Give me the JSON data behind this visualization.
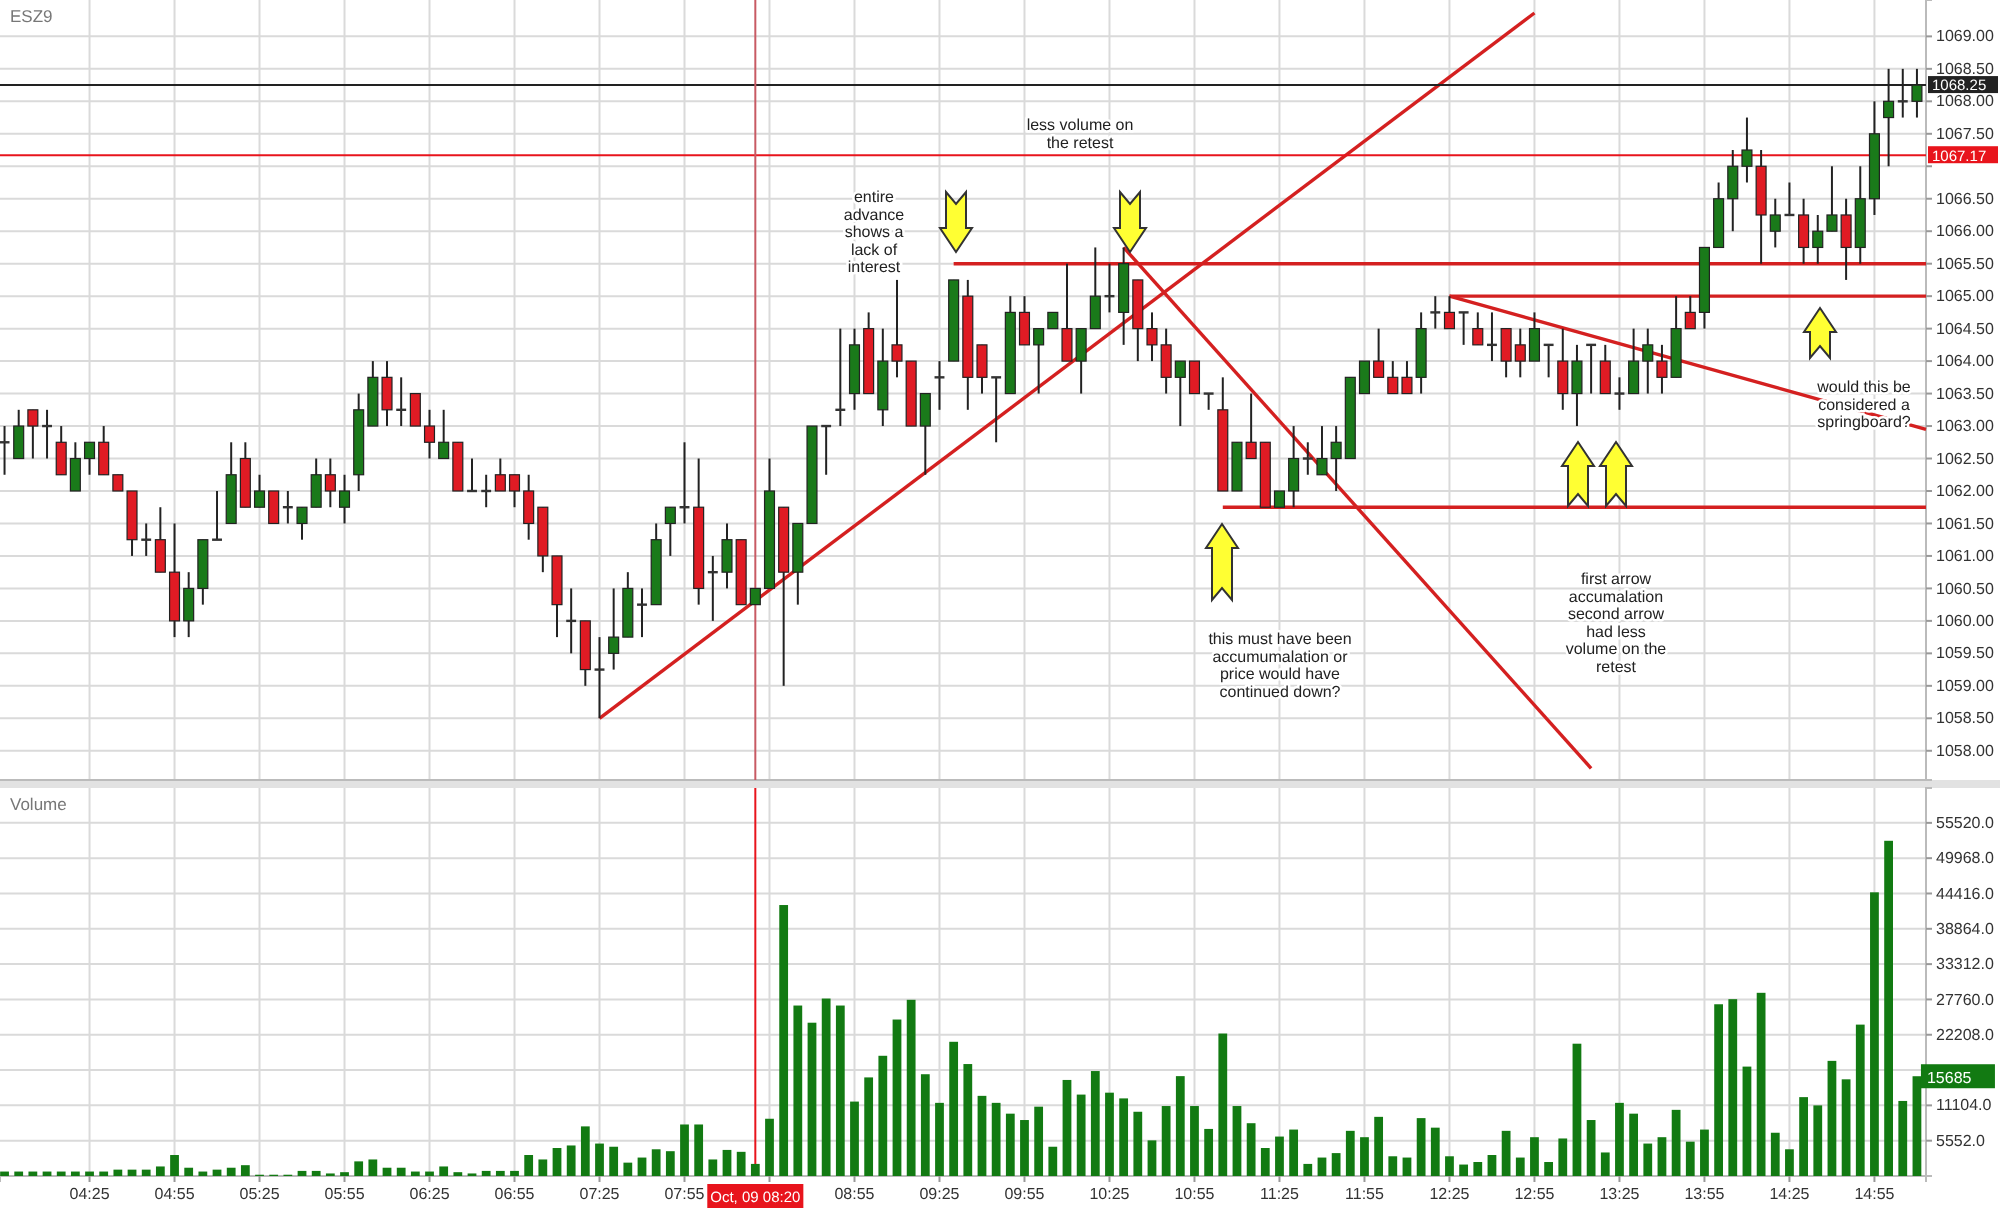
{
  "chart_data": [
    {
      "type": "candlestick",
      "title": "ESZ9",
      "grid": true,
      "tick_labels": "y",
      "xlim": [
        3.89,
        15.22
      ],
      "ylim": [
        1057.55,
        1069.56
      ],
      "xticks": [
        {
          "value": 4.4167,
          "label": null
        },
        {
          "value": 4.9167,
          "label": null
        },
        {
          "value": 5.4167,
          "label": null
        },
        {
          "value": 5.9167,
          "label": null
        },
        {
          "value": 6.4167,
          "label": null
        },
        {
          "value": 6.9167,
          "label": null
        },
        {
          "value": 7.4167,
          "label": null
        },
        {
          "value": 7.9167,
          "label": null
        },
        {
          "value": 8.4167,
          "label": null
        },
        {
          "value": 8.9167,
          "label": null
        },
        {
          "value": 9.4167,
          "label": null
        },
        {
          "value": 9.9167,
          "label": null
        },
        {
          "value": 10.4167,
          "label": null
        },
        {
          "value": 10.9167,
          "label": null
        },
        {
          "value": 11.4167,
          "label": null
        },
        {
          "value": 11.9167,
          "label": null
        },
        {
          "value": 12.4167,
          "label": null
        },
        {
          "value": 12.9167,
          "label": null
        },
        {
          "value": 13.4167,
          "label": null
        },
        {
          "value": 13.9167,
          "label": null
        },
        {
          "value": 14.4167,
          "label": null
        },
        {
          "value": 14.9167,
          "label": null
        }
      ],
      "yticks": [
        {
          "value": 1058,
          "label": "1058.00"
        },
        {
          "value": 1058.5,
          "label": "1058.50"
        },
        {
          "value": 1059,
          "label": "1059.00"
        },
        {
          "value": 1059.5,
          "label": "1059.50"
        },
        {
          "value": 1060,
          "label": "1060.00"
        },
        {
          "value": 1060.5,
          "label": "1060.50"
        },
        {
          "value": 1061,
          "label": "1061.00"
        },
        {
          "value": 1061.5,
          "label": "1061.50"
        },
        {
          "value": 1062,
          "label": "1062.00"
        },
        {
          "value": 1062.5,
          "label": "1062.50"
        },
        {
          "value": 1063,
          "label": "1063.00"
        },
        {
          "value": 1063.5,
          "label": "1063.50"
        },
        {
          "value": 1064,
          "label": "1064.00"
        },
        {
          "value": 1064.5,
          "label": "1064.50"
        },
        {
          "value": 1065,
          "label": "1065.00"
        },
        {
          "value": 1065.5,
          "label": "1065.50"
        },
        {
          "value": 1066,
          "label": "1066.00"
        },
        {
          "value": 1066.5,
          "label": "1066.50"
        },
        {
          "value": 1067,
          "label": null
        },
        {
          "value": 1067.5,
          "label": "1067.50"
        },
        {
          "value": 1068,
          "label": "1068.00"
        },
        {
          "value": 1068.5,
          "label": "1068.50"
        },
        {
          "value": 1069,
          "label": "1069.00"
        }
      ],
      "x": [
        3.9167,
        4,
        4.0833,
        4.1667,
        4.25,
        4.3333,
        4.4167,
        4.5,
        4.5833,
        4.6667,
        4.75,
        4.8333,
        4.9167,
        5,
        5.0833,
        5.1667,
        5.25,
        5.3333,
        5.4167,
        5.5,
        5.5833,
        5.6667,
        5.75,
        5.8333,
        5.9167,
        6,
        6.0833,
        6.1667,
        6.25,
        6.3333,
        6.4167,
        6.5,
        6.5833,
        6.6667,
        6.75,
        6.8333,
        6.9167,
        7,
        7.0833,
        7.1667,
        7.25,
        7.3333,
        7.4167,
        7.5,
        7.5833,
        7.6667,
        7.75,
        7.8333,
        7.9167,
        8,
        8.0833,
        8.1667,
        8.25,
        8.3333,
        8.4167,
        8.5,
        8.5833,
        8.6667,
        8.75,
        8.8333,
        8.9167,
        9,
        9.0833,
        9.1667,
        9.25,
        9.3333,
        9.4167,
        9.5,
        9.5833,
        9.6667,
        9.75,
        9.8333,
        9.9167,
        10,
        10.0833,
        10.1667,
        10.25,
        10.3333,
        10.4167,
        10.5,
        10.5833,
        10.6667,
        10.75,
        10.8333,
        10.9167,
        11,
        11.0833,
        11.1667,
        11.25,
        11.3333,
        11.4167,
        11.5,
        11.5833,
        11.6667,
        11.75,
        11.8333,
        11.9167,
        12,
        12.0833,
        12.1667,
        12.25,
        12.3333,
        12.4167,
        12.5,
        12.5833,
        12.6667,
        12.75,
        12.8333,
        12.9167,
        13,
        13.0833,
        13.1667,
        13.25,
        13.3333,
        13.4167,
        13.5,
        13.5833,
        13.6667,
        13.75,
        13.8333,
        13.9167,
        14,
        14.0833,
        14.1667,
        14.25,
        14.3333,
        14.4167,
        14.5,
        14.5833,
        14.6667,
        14.75,
        14.8333,
        14.9167,
        15,
        15.0833,
        15.1667
      ],
      "ohlc": [
        [
          1062.75,
          1063,
          1062.25,
          1062.75
        ],
        [
          1062.5,
          1063.25,
          1062.5,
          1063
        ],
        [
          1063.25,
          1063.25,
          1062.5,
          1063
        ],
        [
          1063,
          1063.25,
          1062.5,
          1063
        ],
        [
          1062.75,
          1063,
          1062.25,
          1062.25
        ],
        [
          1062,
          1062.75,
          1062,
          1062.5
        ],
        [
          1062.5,
          1062.75,
          1062.25,
          1062.75
        ],
        [
          1062.75,
          1063,
          1062.25,
          1062.25
        ],
        [
          1062.25,
          1062.25,
          1062,
          1062
        ],
        [
          1062,
          1062,
          1061,
          1061.25
        ],
        [
          1061.25,
          1061.5,
          1061,
          1061.25
        ],
        [
          1061.25,
          1061.75,
          1060.75,
          1060.75
        ],
        [
          1060.75,
          1061.5,
          1059.75,
          1060
        ],
        [
          1060,
          1060.75,
          1059.75,
          1060.5
        ],
        [
          1060.5,
          1061.25,
          1060.25,
          1061.25
        ],
        [
          1061.25,
          1062,
          1061.25,
          1061.25
        ],
        [
          1061.5,
          1062.75,
          1061.5,
          1062.25
        ],
        [
          1062.5,
          1062.75,
          1061.75,
          1061.75
        ],
        [
          1061.75,
          1062.25,
          1061.75,
          1062
        ],
        [
          1062,
          1062,
          1061.5,
          1061.5
        ],
        [
          1061.75,
          1062,
          1061.5,
          1061.75
        ],
        [
          1061.5,
          1061.75,
          1061.25,
          1061.75
        ],
        [
          1061.75,
          1062.5,
          1061.75,
          1062.25
        ],
        [
          1062.25,
          1062.5,
          1061.75,
          1062
        ],
        [
          1061.75,
          1062.25,
          1061.5,
          1062
        ],
        [
          1062.25,
          1063.5,
          1062,
          1063.25
        ],
        [
          1063,
          1064,
          1063,
          1063.75
        ],
        [
          1063.75,
          1064,
          1063,
          1063.25
        ],
        [
          1063.25,
          1063.75,
          1063,
          1063.25
        ],
        [
          1063.5,
          1063.5,
          1063,
          1063
        ],
        [
          1063,
          1063.25,
          1062.5,
          1062.75
        ],
        [
          1062.5,
          1063.25,
          1062.5,
          1062.75
        ],
        [
          1062.75,
          1062.75,
          1062,
          1062
        ],
        [
          1062,
          1062.5,
          1062,
          1062
        ],
        [
          1062,
          1062.25,
          1061.75,
          1062
        ],
        [
          1062.25,
          1062.5,
          1062,
          1062
        ],
        [
          1062.25,
          1062.25,
          1061.75,
          1062
        ],
        [
          1062,
          1062.25,
          1061.25,
          1061.5
        ],
        [
          1061.75,
          1061.75,
          1060.75,
          1061
        ],
        [
          1061,
          1061,
          1059.75,
          1060.25
        ],
        [
          1060,
          1060.5,
          1059.5,
          1060
        ],
        [
          1060,
          1060,
          1059,
          1059.25
        ],
        [
          1059.25,
          1059.75,
          1058.5,
          1059.25
        ],
        [
          1059.5,
          1060.5,
          1059.25,
          1059.75
        ],
        [
          1059.75,
          1060.75,
          1059.75,
          1060.5
        ],
        [
          1060.25,
          1060.5,
          1059.75,
          1060.25
        ],
        [
          1060.25,
          1061.5,
          1060.25,
          1061.25
        ],
        [
          1061.5,
          1061.75,
          1061,
          1061.75
        ],
        [
          1061.75,
          1062.75,
          1061.5,
          1061.75
        ],
        [
          1061.75,
          1062.5,
          1060.25,
          1060.5
        ],
        [
          1060.75,
          1061,
          1060,
          1060.75
        ],
        [
          1060.75,
          1061.5,
          1060.5,
          1061.25
        ],
        [
          1061.25,
          1061.25,
          1060.25,
          1060.25
        ],
        [
          1060.25,
          1060.5,
          1060.25,
          1060.5
        ],
        [
          1060.5,
          1062.5,
          1060.5,
          1062
        ],
        [
          1061.75,
          1061.75,
          1059,
          1060.75
        ],
        [
          1060.75,
          1061.5,
          1060.25,
          1061.5
        ],
        [
          1061.5,
          1063,
          1061.5,
          1063
        ],
        [
          1063,
          1063,
          1062.25,
          1063
        ],
        [
          1063.25,
          1064.5,
          1063,
          1063.25
        ],
        [
          1063.5,
          1064.5,
          1063.25,
          1064.25
        ],
        [
          1064.5,
          1064.75,
          1063.5,
          1063.5
        ],
        [
          1063.25,
          1064.5,
          1063,
          1064
        ],
        [
          1064.25,
          1065.25,
          1063.75,
          1064
        ],
        [
          1064,
          1064,
          1063,
          1063
        ],
        [
          1063,
          1063.5,
          1062.25,
          1063.5
        ],
        [
          1063.75,
          1064,
          1063.25,
          1063.75
        ],
        [
          1064,
          1065.25,
          1064,
          1065.25
        ],
        [
          1065,
          1065.25,
          1063.25,
          1063.75
        ],
        [
          1064.25,
          1064.25,
          1063.5,
          1063.75
        ],
        [
          1063.75,
          1063.75,
          1062.75,
          1063.75
        ],
        [
          1063.5,
          1065,
          1063.5,
          1064.75
        ],
        [
          1064.75,
          1065,
          1064.25,
          1064.25
        ],
        [
          1064.25,
          1064.5,
          1063.5,
          1064.5
        ],
        [
          1064.5,
          1064.75,
          1064.5,
          1064.75
        ],
        [
          1064.5,
          1065.5,
          1064,
          1064
        ],
        [
          1064,
          1064.5,
          1063.5,
          1064.5
        ],
        [
          1064.5,
          1065.75,
          1064.5,
          1065
        ],
        [
          1065,
          1065.5,
          1064.75,
          1065
        ],
        [
          1064.75,
          1065.75,
          1064.25,
          1065.5
        ],
        [
          1065.25,
          1065.25,
          1064,
          1064.5
        ],
        [
          1064.5,
          1064.75,
          1064,
          1064.25
        ],
        [
          1064.25,
          1064.5,
          1063.5,
          1063.75
        ],
        [
          1063.75,
          1064,
          1063,
          1064
        ],
        [
          1064,
          1064,
          1063.5,
          1063.5
        ],
        [
          1063.5,
          1063.5,
          1063.25,
          1063.5
        ],
        [
          1063.25,
          1063.75,
          1062,
          1062
        ],
        [
          1062,
          1062.75,
          1062,
          1062.75
        ],
        [
          1062.75,
          1063.5,
          1062.5,
          1062.5
        ],
        [
          1062.75,
          1062.75,
          1061.75,
          1061.75
        ],
        [
          1061.75,
          1062,
          1061.75,
          1062
        ],
        [
          1062,
          1063,
          1061.75,
          1062.5
        ],
        [
          1062.5,
          1062.75,
          1062.25,
          1062.5
        ],
        [
          1062.25,
          1063,
          1062.25,
          1062.5
        ],
        [
          1062.5,
          1063,
          1062,
          1062.75
        ],
        [
          1062.5,
          1063.75,
          1062.5,
          1063.75
        ],
        [
          1063.5,
          1064,
          1063.5,
          1064
        ],
        [
          1064,
          1064.5,
          1063.75,
          1063.75
        ],
        [
          1063.75,
          1064,
          1063.5,
          1063.5
        ],
        [
          1063.75,
          1064,
          1063.5,
          1063.5
        ],
        [
          1063.75,
          1064.75,
          1063.5,
          1064.5
        ],
        [
          1064.75,
          1065,
          1064.5,
          1064.75
        ],
        [
          1064.75,
          1065,
          1064.5,
          1064.5
        ],
        [
          1064.75,
          1064.75,
          1064.25,
          1064.75
        ],
        [
          1064.5,
          1064.75,
          1064.25,
          1064.25
        ],
        [
          1064.25,
          1064.75,
          1064,
          1064.25
        ],
        [
          1064.5,
          1064.5,
          1063.75,
          1064
        ],
        [
          1064.25,
          1064.5,
          1063.75,
          1064
        ],
        [
          1064,
          1064.75,
          1064,
          1064.5
        ],
        [
          1064.25,
          1064.25,
          1063.75,
          1064.25
        ],
        [
          1064,
          1064.5,
          1063.25,
          1063.5
        ],
        [
          1063.5,
          1064.25,
          1063,
          1064
        ],
        [
          1064.25,
          1064.25,
          1063.5,
          1064.25
        ],
        [
          1064,
          1064.25,
          1063.5,
          1063.5
        ],
        [
          1063.5,
          1063.75,
          1063.25,
          1063.5
        ],
        [
          1063.5,
          1064.5,
          1063.5,
          1064
        ],
        [
          1064,
          1064.5,
          1063.5,
          1064.25
        ],
        [
          1064,
          1064.25,
          1063.5,
          1063.75
        ],
        [
          1063.75,
          1065,
          1063.75,
          1064.5
        ],
        [
          1064.75,
          1065,
          1064.5,
          1064.5
        ],
        [
          1064.75,
          1065.75,
          1064.5,
          1065.75
        ],
        [
          1065.75,
          1066.75,
          1065.75,
          1066.5
        ],
        [
          1066.5,
          1067.25,
          1066,
          1067
        ],
        [
          1067,
          1067.75,
          1066.75,
          1067.25
        ],
        [
          1067,
          1067.25,
          1065.5,
          1066.25
        ],
        [
          1066,
          1066.5,
          1065.75,
          1066.25
        ],
        [
          1066.25,
          1066.75,
          1066.25,
          1066.25
        ],
        [
          1066.25,
          1066.5,
          1065.5,
          1065.75
        ],
        [
          1065.75,
          1066.25,
          1065.5,
          1066
        ],
        [
          1066,
          1067,
          1066,
          1066.25
        ],
        [
          1066.25,
          1066.5,
          1065.25,
          1065.75
        ],
        [
          1065.75,
          1067,
          1065.5,
          1066.5
        ],
        [
          1066.5,
          1068,
          1066.25,
          1067.5
        ],
        [
          1067.75,
          1068.5,
          1067,
          1068
        ],
        [
          1068,
          1068.5,
          1067.75,
          1068
        ],
        [
          1068,
          1068.5,
          1067.75,
          1068.25
        ]
      ],
      "colors": [
        "#333333",
        "#1a7a1a",
        "#e01b24",
        "#333333",
        "#e01b24",
        "#1a7a1a",
        "#1a7a1a",
        "#e01b24",
        "#e01b24",
        "#e01b24",
        "#333333",
        "#e01b24",
        "#e01b24",
        "#1a7a1a",
        "#1a7a1a",
        "#333333",
        "#1a7a1a",
        "#e01b24",
        "#1a7a1a",
        "#e01b24",
        "#333333",
        "#1a7a1a",
        "#1a7a1a",
        "#e01b24",
        "#1a7a1a",
        "#1a7a1a",
        "#1a7a1a",
        "#e01b24",
        "#333333",
        "#e01b24",
        "#e01b24",
        "#1a7a1a",
        "#e01b24",
        "#333333",
        "#333333",
        "#e01b24",
        "#e01b24",
        "#e01b24",
        "#e01b24",
        "#e01b24",
        "#333333",
        "#e01b24",
        "#333333",
        "#1a7a1a",
        "#1a7a1a",
        "#333333",
        "#1a7a1a",
        "#1a7a1a",
        "#333333",
        "#e01b24",
        "#333333",
        "#1a7a1a",
        "#e01b24",
        "#1a7a1a",
        "#1a7a1a",
        "#e01b24",
        "#1a7a1a",
        "#1a7a1a",
        "#333333",
        "#333333",
        "#1a7a1a",
        "#e01b24",
        "#1a7a1a",
        "#e01b24",
        "#e01b24",
        "#1a7a1a",
        "#333333",
        "#1a7a1a",
        "#e01b24",
        "#e01b24",
        "#333333",
        "#1a7a1a",
        "#e01b24",
        "#1a7a1a",
        "#1a7a1a",
        "#e01b24",
        "#1a7a1a",
        "#1a7a1a",
        "#333333",
        "#1a7a1a",
        "#e01b24",
        "#e01b24",
        "#e01b24",
        "#1a7a1a",
        "#e01b24",
        "#333333",
        "#e01b24",
        "#1a7a1a",
        "#e01b24",
        "#e01b24",
        "#1a7a1a",
        "#1a7a1a",
        "#333333",
        "#1a7a1a",
        "#1a7a1a",
        "#1a7a1a",
        "#1a7a1a",
        "#e01b24",
        "#e01b24",
        "#e01b24",
        "#1a7a1a",
        "#333333",
        "#e01b24",
        "#333333",
        "#e01b24",
        "#333333",
        "#e01b24",
        "#e01b24",
        "#1a7a1a",
        "#333333",
        "#e01b24",
        "#1a7a1a",
        "#333333",
        "#e01b24",
        "#333333",
        "#1a7a1a",
        "#1a7a1a",
        "#e01b24",
        "#1a7a1a",
        "#e01b24",
        "#1a7a1a",
        "#1a7a1a",
        "#1a7a1a",
        "#1a7a1a",
        "#e01b24",
        "#1a7a1a",
        "#333333",
        "#e01b24",
        "#1a7a1a",
        "#1a7a1a",
        "#e01b24",
        "#1a7a1a",
        "#1a7a1a",
        "#1a7a1a",
        "#333333",
        "#1a7a1a"
      ],
      "series": [
        {
          "type": "line",
          "x": [
            7.4167,
            12.9167
          ],
          "values": [
            1058.5,
            1069.36
          ],
          "color": "#d42020"
        },
        {
          "type": "line",
          "x": [
            10.5,
            13.25
          ],
          "values": [
            1065.75,
            1057.73
          ],
          "color": "#d42020"
        },
        {
          "type": "line",
          "x": [
            12.4167,
            15.22
          ],
          "values": [
            1065,
            1062.95
          ],
          "color": "#d42020"
        },
        {
          "type": "line",
          "x": [
            9.5,
            15.22
          ],
          "values": [
            1065.5,
            1065.5
          ],
          "color": "#d42020"
        },
        {
          "type": "line",
          "x": [
            12.4167,
            15.22
          ],
          "values": [
            1065,
            1065
          ],
          "color": "#d42020"
        },
        {
          "type": "line",
          "x": [
            11.0833,
            15.22
          ],
          "values": [
            1061.75,
            1061.75
          ],
          "color": "#d42020"
        }
      ],
      "ref_lines": [
        {
          "axis": "y",
          "value": 1068.25,
          "label": "1068.25",
          "color": "#222222"
        },
        {
          "axis": "y",
          "value": 1067.17,
          "label": "1067.17",
          "color": "#e8141c"
        },
        {
          "axis": "x",
          "value": 8.3333,
          "color": "#c85a64"
        }
      ],
      "annotations": [
        "entire advance shows a lack of interest",
        "less volume on the retest",
        "this must have been accumumalation or price would have continued down?",
        "first arrow accumalation second arrow had less volume on the retest",
        "would this be considered a springboard?"
      ]
    },
    {
      "type": "bar",
      "title": "Volume",
      "grid": true,
      "color": "#127a12",
      "xlim": [
        3.89,
        15.22
      ],
      "ylim": [
        0,
        61000
      ],
      "xticks": [
        {
          "value": 4.4167,
          "label": "04:25"
        },
        {
          "value": 4.9167,
          "label": "04:55"
        },
        {
          "value": 5.4167,
          "label": "05:25"
        },
        {
          "value": 5.9167,
          "label": "05:55"
        },
        {
          "value": 6.4167,
          "label": "06:25"
        },
        {
          "value": 6.9167,
          "label": "06:55"
        },
        {
          "value": 7.4167,
          "label": "07:25"
        },
        {
          "value": 7.9167,
          "label": "07:55"
        },
        {
          "value": 8.4167,
          "label": null
        },
        {
          "value": 8.9167,
          "label": "08:55"
        },
        {
          "value": 9.4167,
          "label": "09:25"
        },
        {
          "value": 9.9167,
          "label": "09:55"
        },
        {
          "value": 10.4167,
          "label": "10:25"
        },
        {
          "value": 10.9167,
          "label": "10:55"
        },
        {
          "value": 11.4167,
          "label": "11:25"
        },
        {
          "value": 11.9167,
          "label": "11:55"
        },
        {
          "value": 12.4167,
          "label": "12:25"
        },
        {
          "value": 12.9167,
          "label": "12:55"
        },
        {
          "value": 13.4167,
          "label": "13:25"
        },
        {
          "value": 13.9167,
          "label": "13:55"
        },
        {
          "value": 14.4167,
          "label": "14:25"
        },
        {
          "value": 14.9167,
          "label": "14:55"
        }
      ],
      "yticks": [
        {
          "value": 5552,
          "label": "5552.0"
        },
        {
          "value": 11104,
          "label": "11104.0"
        },
        {
          "value": 16656,
          "label": null
        },
        {
          "value": 22208,
          "label": "22208.0"
        },
        {
          "value": 27760,
          "label": "27760.0"
        },
        {
          "value": 33312,
          "label": "33312.0"
        },
        {
          "value": 38864,
          "label": "38864.0"
        },
        {
          "value": 44416,
          "label": "44416.0"
        },
        {
          "value": 49968,
          "label": "49968.0"
        },
        {
          "value": 55520,
          "label": "55520.0"
        }
      ],
      "x": [
        3.9167,
        4,
        4.0833,
        4.1667,
        4.25,
        4.3333,
        4.4167,
        4.5,
        4.5833,
        4.6667,
        4.75,
        4.8333,
        4.9167,
        5,
        5.0833,
        5.1667,
        5.25,
        5.3333,
        5.4167,
        5.5,
        5.5833,
        5.6667,
        5.75,
        5.8333,
        5.9167,
        6,
        6.0833,
        6.1667,
        6.25,
        6.3333,
        6.4167,
        6.5,
        6.5833,
        6.6667,
        6.75,
        6.8333,
        6.9167,
        7,
        7.0833,
        7.1667,
        7.25,
        7.3333,
        7.4167,
        7.5,
        7.5833,
        7.6667,
        7.75,
        7.8333,
        7.9167,
        8,
        8.0833,
        8.1667,
        8.25,
        8.3333,
        8.4167,
        8.5,
        8.5833,
        8.6667,
        8.75,
        8.8333,
        8.9167,
        9,
        9.0833,
        9.1667,
        9.25,
        9.3333,
        9.4167,
        9.5,
        9.5833,
        9.6667,
        9.75,
        9.8333,
        9.9167,
        10,
        10.0833,
        10.1667,
        10.25,
        10.3333,
        10.4167,
        10.5,
        10.5833,
        10.6667,
        10.75,
        10.8333,
        10.9167,
        11,
        11.0833,
        11.1667,
        11.25,
        11.3333,
        11.4167,
        11.5,
        11.5833,
        11.6667,
        11.75,
        11.8333,
        11.9167,
        12,
        12.0833,
        12.1667,
        12.25,
        12.3333,
        12.4167,
        12.5,
        12.5833,
        12.6667,
        12.75,
        12.8333,
        12.9167,
        13,
        13.0833,
        13.1667,
        13.25,
        13.3333,
        13.4167,
        13.5,
        13.5833,
        13.6667,
        13.75,
        13.8333,
        13.9167,
        14,
        14.0833,
        14.1667,
        14.25,
        14.3333,
        14.4167,
        14.5,
        14.5833,
        14.6667,
        14.75,
        14.8333,
        14.9167,
        15,
        15.0833,
        15.1667
      ],
      "values": [
        700,
        700,
        700,
        700,
        700,
        700,
        700,
        700,
        1000,
        1000,
        1000,
        1500,
        3300,
        1300,
        700,
        1000,
        1300,
        1700,
        200,
        200,
        200,
        800,
        800,
        400,
        600,
        2300,
        2600,
        1300,
        1300,
        700,
        700,
        1500,
        600,
        400,
        800,
        800,
        800,
        3300,
        2600,
        4400,
        4800,
        7800,
        5100,
        4600,
        2100,
        2900,
        4200,
        3900,
        8100,
        8100,
        2600,
        4100,
        3800,
        1900,
        9000,
        42600,
        26800,
        24100,
        27900,
        26800,
        11700,
        15500,
        18900,
        24600,
        27700,
        16000,
        11500,
        21100,
        17600,
        12600,
        11500,
        9800,
        8800,
        10900,
        4600,
        15100,
        12800,
        16500,
        13100,
        12200,
        10100,
        5600,
        11000,
        15700,
        11000,
        7400,
        22400,
        11000,
        8300,
        4400,
        6200,
        7300,
        1900,
        2900,
        3600,
        7100,
        6100,
        9300,
        3100,
        2900,
        9100,
        7600,
        3100,
        1800,
        2200,
        3300,
        7100,
        2900,
        6100,
        2200,
        5900,
        20800,
        8800,
        3700,
        11500,
        9800,
        5100,
        6100,
        10400,
        5400,
        7300,
        27000,
        27800,
        17200,
        28800,
        6800,
        4200,
        12400,
        11100,
        18100,
        15200,
        23800,
        44600,
        52700,
        11800,
        15685
      ],
      "ref_lines": [
        {
          "axis": "x",
          "value": 8.3333,
          "label": "Oct, 09 08:20",
          "color": "#e8141c"
        }
      ],
      "annotations": [
        {
          "text": "15685",
          "x": 15.1667,
          "y": 15685
        }
      ]
    }
  ]
}
